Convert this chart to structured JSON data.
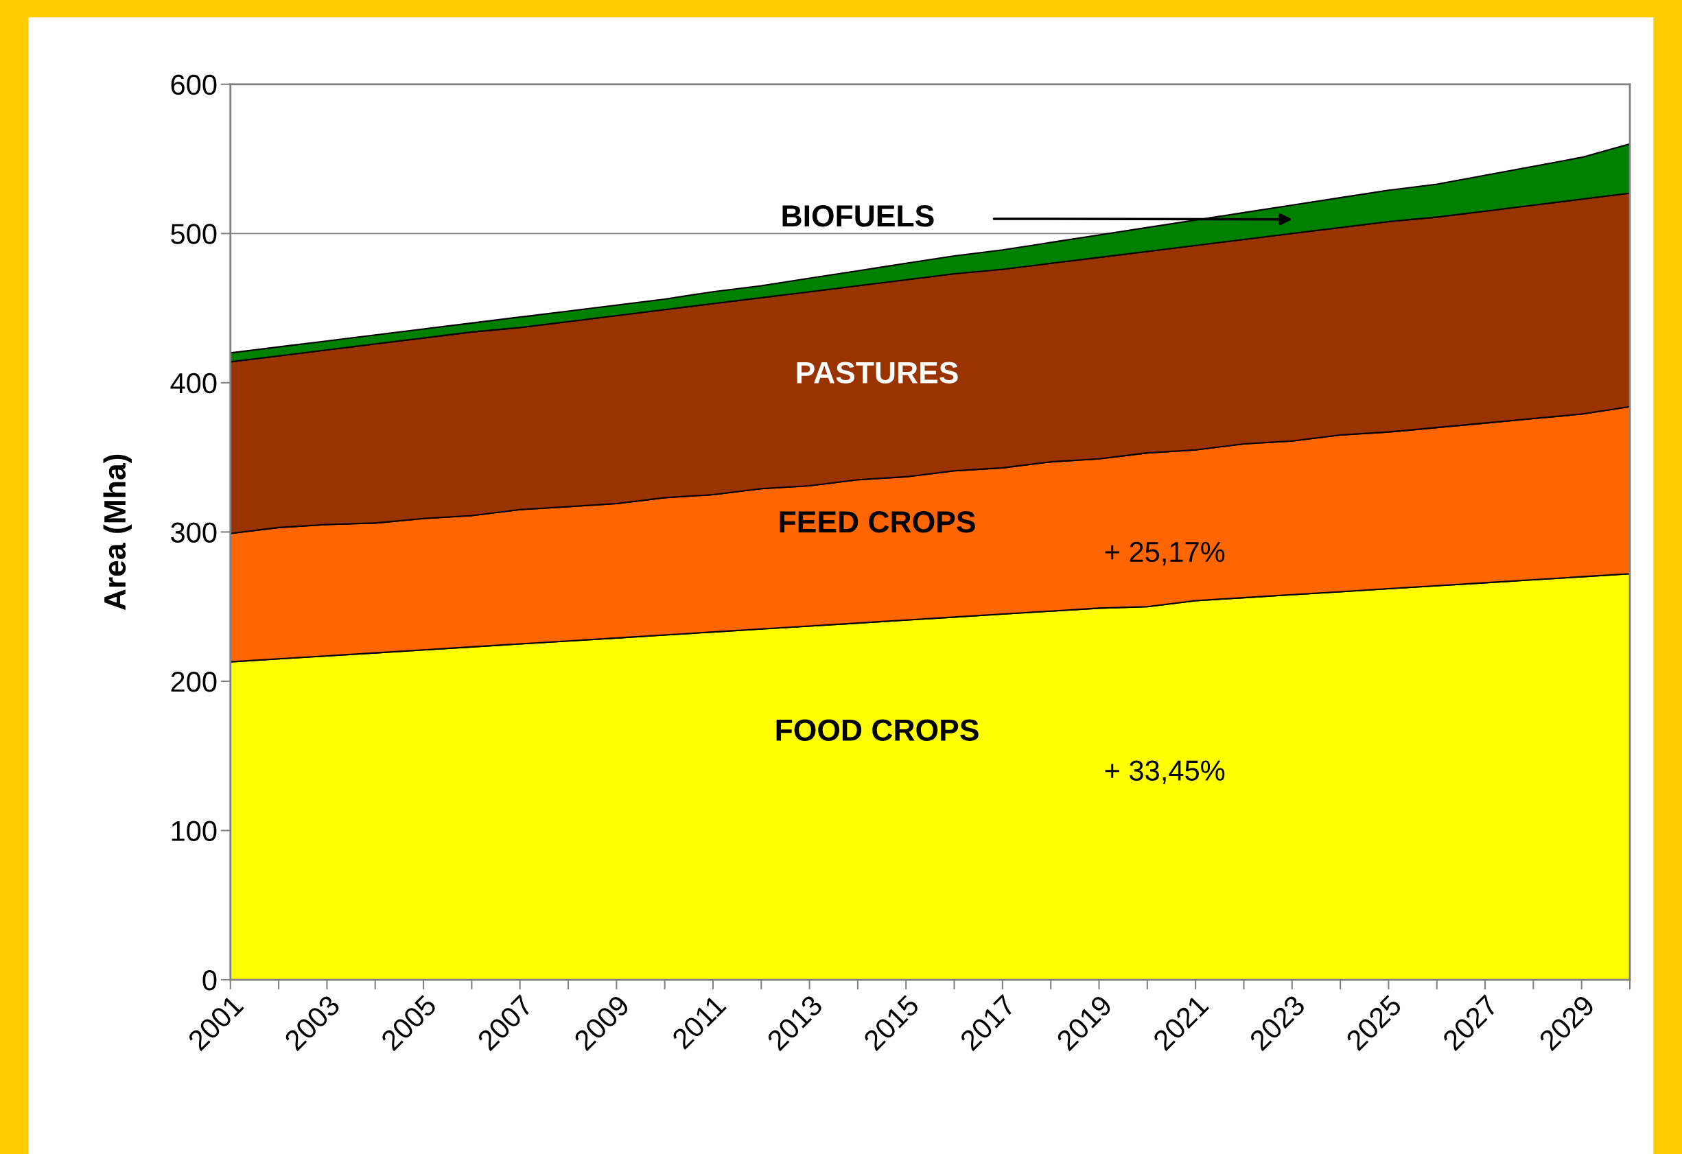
{
  "chart_data": {
    "type": "area",
    "stacked": true,
    "ylabel": "Area (Mha)",
    "x": [
      2001,
      2002,
      2003,
      2004,
      2005,
      2006,
      2007,
      2008,
      2009,
      2010,
      2011,
      2012,
      2013,
      2014,
      2015,
      2016,
      2017,
      2018,
      2019,
      2020,
      2021,
      2022,
      2023,
      2024,
      2025,
      2026,
      2027,
      2028,
      2029,
      2030
    ],
    "series": [
      {
        "name": "FOOD CROPS",
        "color": "#ffff00",
        "values": [
          213,
          215,
          217,
          219,
          221,
          223,
          225,
          227,
          229,
          231,
          233,
          235,
          237,
          239,
          241,
          243,
          245,
          247,
          249,
          250,
          254,
          256,
          258,
          260,
          262,
          264,
          266,
          268,
          270,
          272
        ]
      },
      {
        "name": "FEED CROPS",
        "color": "#ff6600",
        "values": [
          86,
          88,
          88,
          87,
          88,
          88,
          90,
          90,
          90,
          92,
          92,
          94,
          94,
          96,
          96,
          98,
          98,
          100,
          100,
          103,
          101,
          103,
          103,
          105,
          105,
          106,
          107,
          108,
          109,
          112
        ]
      },
      {
        "name": "PASTURES",
        "color": "#993300",
        "values": [
          115,
          115,
          117,
          120,
          121,
          123,
          122,
          124,
          126,
          126,
          128,
          128,
          130,
          130,
          132,
          132,
          133,
          133,
          135,
          135,
          137,
          137,
          139,
          139,
          141,
          141,
          142,
          143,
          144,
          143
        ]
      },
      {
        "name": "BIOFUELS",
        "color": "#008000",
        "values": [
          6,
          6,
          6,
          6,
          6,
          6,
          7,
          7,
          7,
          7,
          8,
          8,
          9,
          10,
          11,
          12,
          13,
          14,
          15,
          16,
          17,
          18,
          19,
          20,
          21,
          22,
          24,
          26,
          28,
          33
        ]
      }
    ],
    "annotations": [
      "+ 33,45%",
      "+ 25,17%"
    ],
    "xlim": [
      2001,
      2030
    ],
    "xticks": [
      2001,
      {
        "value": 2002,
        "label": null
      },
      2003,
      {
        "value": 2004,
        "label": null
      },
      2005,
      {
        "value": 2006,
        "label": null
      },
      2007,
      {
        "value": 2008,
        "label": null
      },
      2009,
      {
        "value": 2010,
        "label": null
      },
      2011,
      {
        "value": 2012,
        "label": null
      },
      2013,
      {
        "value": 2014,
        "label": null
      },
      2015,
      {
        "value": 2016,
        "label": null
      },
      2017,
      {
        "value": 2018,
        "label": null
      },
      2019,
      {
        "value": 2020,
        "label": null
      },
      2021,
      {
        "value": 2022,
        "label": null
      },
      2023,
      {
        "value": 2024,
        "label": null
      },
      2025,
      {
        "value": 2026,
        "label": null
      },
      2027,
      {
        "value": 2028,
        "label": null
      },
      2029,
      {
        "value": 2030,
        "label": null
      }
    ],
    "ylim": [
      0,
      600
    ],
    "yticks": [
      0,
      100,
      200,
      300,
      400,
      500,
      600
    ],
    "grid": "y",
    "legend": false
  }
}
